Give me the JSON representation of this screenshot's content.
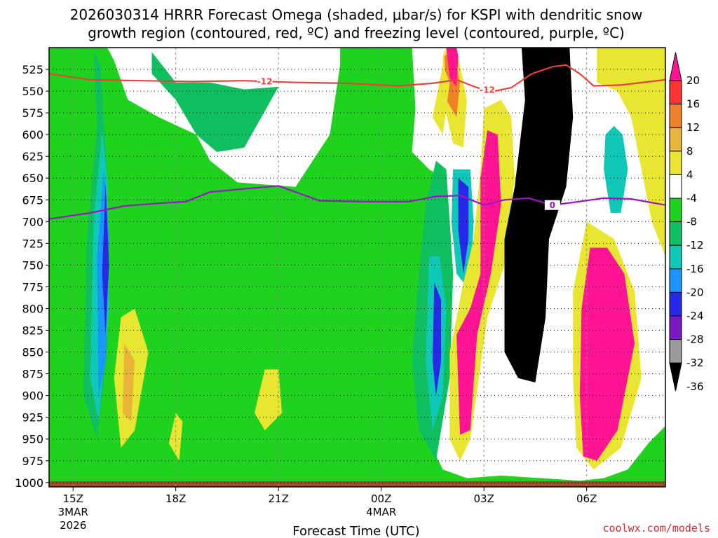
{
  "chart_data": {
    "type": "heatmap",
    "title_line1": "2026030314 HRRR Forecast Omega (shaded, μbar/s) for KSPI with dendritic snow",
    "title_line2": "growth region (contoured, red, ºC) and freezing level (contoured, purple, ºC)",
    "xlabel": "Forecast Time (UTC)",
    "watermark": "coolwx.com/models",
    "x_range_hours": [
      14.3,
      32.3
    ],
    "y_range_mb": [
      500,
      1005
    ],
    "x_ticks": [
      {
        "hour": 15,
        "label": "15Z",
        "sub1": "3MAR",
        "sub2": "2026"
      },
      {
        "hour": 18,
        "label": "18Z",
        "sub1": "",
        "sub2": ""
      },
      {
        "hour": 21,
        "label": "21Z",
        "sub1": "",
        "sub2": ""
      },
      {
        "hour": 24,
        "label": "00Z",
        "sub1": "4MAR",
        "sub2": ""
      },
      {
        "hour": 27,
        "label": "03Z",
        "sub1": "",
        "sub2": ""
      },
      {
        "hour": 30,
        "label": "06Z",
        "sub1": "",
        "sub2": ""
      }
    ],
    "y_ticks": [
      "525",
      "550",
      "575",
      "600",
      "625",
      "650",
      "675",
      "700",
      "725",
      "750",
      "775",
      "800",
      "825",
      "850",
      "875",
      "900",
      "925",
      "950",
      "975",
      "1000"
    ],
    "colorbar": {
      "labels": [
        "20",
        "16",
        "12",
        "8",
        "4",
        "-4",
        "-8",
        "-12",
        "-16",
        "-20",
        "-24",
        "-28",
        "-32",
        "-36"
      ],
      "colors": [
        "#ff1493",
        "#ff3333",
        "#f07f28",
        "#e8b43a",
        "#e9e632",
        "#ffffff",
        "#1ed21e",
        "#10c060",
        "#10c8b8",
        "#1a96ff",
        "#2828e8",
        "#7d18c8",
        "#9b9b9b",
        "#000000"
      ]
    },
    "contours": [
      {
        "name": "dendritic growth -12C",
        "color": "#e8403a",
        "labels": [
          "-12",
          "-12"
        ],
        "label_hours": [
          20.6,
          27.1
        ],
        "points": [
          [
            14.3,
            530
          ],
          [
            15.5,
            537
          ],
          [
            17.0,
            538
          ],
          [
            18.5,
            539
          ],
          [
            20.0,
            538
          ],
          [
            21.5,
            540
          ],
          [
            23.0,
            541
          ],
          [
            24.5,
            544
          ],
          [
            25.5,
            541
          ],
          [
            26.2,
            537
          ],
          [
            26.8,
            546
          ],
          [
            27.3,
            550
          ],
          [
            27.8,
            546
          ],
          [
            28.4,
            530
          ],
          [
            29.0,
            522
          ],
          [
            29.4,
            520
          ],
          [
            29.8,
            530
          ],
          [
            30.2,
            544
          ],
          [
            31.0,
            543
          ],
          [
            32.3,
            537
          ]
        ]
      },
      {
        "name": "freezing level 0C",
        "color": "#9a14c8",
        "labels": [
          "0"
        ],
        "label_hours": [
          29.0
        ],
        "points": [
          [
            14.3,
            697
          ],
          [
            15.5,
            690
          ],
          [
            16.5,
            682
          ],
          [
            17.5,
            679
          ],
          [
            18.3,
            677
          ],
          [
            19.0,
            666
          ],
          [
            19.8,
            663
          ],
          [
            21.0,
            659
          ],
          [
            22.2,
            676
          ],
          [
            23.5,
            677
          ],
          [
            24.8,
            677
          ],
          [
            25.6,
            671
          ],
          [
            26.3,
            670
          ],
          [
            27.0,
            681
          ],
          [
            27.6,
            675
          ],
          [
            28.3,
            673
          ],
          [
            29.0,
            681
          ],
          [
            29.6,
            678
          ],
          [
            30.5,
            673
          ],
          [
            31.3,
            674
          ],
          [
            32.3,
            681
          ]
        ]
      }
    ],
    "shaded_regions": [
      {
        "value": "-8",
        "polygon": [
          [
            14.3,
            500
          ],
          [
            16.0,
            500
          ],
          [
            16.2,
            515
          ],
          [
            16.6,
            560
          ],
          [
            17.5,
            580
          ],
          [
            18.6,
            600
          ],
          [
            19.0,
            630
          ],
          [
            19.8,
            655
          ],
          [
            21.5,
            660
          ],
          [
            22.0,
            630
          ],
          [
            22.5,
            600
          ],
          [
            22.8,
            520
          ],
          [
            22.8,
            500
          ],
          [
            24.9,
            500
          ],
          [
            25.0,
            570
          ],
          [
            24.9,
            620
          ],
          [
            25.4,
            640
          ],
          [
            25.8,
            650
          ],
          [
            26.0,
            700
          ],
          [
            26.1,
            760
          ],
          [
            25.7,
            820
          ],
          [
            25.4,
            880
          ],
          [
            25.3,
            945
          ],
          [
            25.8,
            985
          ],
          [
            26.5,
            995
          ],
          [
            27.5,
            992
          ],
          [
            28.7,
            995
          ],
          [
            29.8,
            998
          ],
          [
            30.5,
            995
          ],
          [
            31.2,
            985
          ],
          [
            31.8,
            955
          ],
          [
            32.3,
            935
          ],
          [
            32.3,
            1000
          ],
          [
            14.3,
            1000
          ]
        ]
      },
      {
        "value": "-12",
        "polygon": [
          [
            15.6,
            505
          ],
          [
            15.7,
            590
          ],
          [
            15.4,
            720
          ],
          [
            15.3,
            900
          ],
          [
            15.7,
            950
          ],
          [
            16.0,
            850
          ],
          [
            16.0,
            650
          ],
          [
            15.8,
            520
          ]
        ]
      },
      {
        "value": "-12",
        "polygon": [
          [
            17.3,
            505
          ],
          [
            18.0,
            540
          ],
          [
            19.0,
            540
          ],
          [
            20.0,
            548
          ],
          [
            21.0,
            545
          ],
          [
            20.5,
            580
          ],
          [
            20.0,
            615
          ],
          [
            19.2,
            620
          ],
          [
            18.6,
            600
          ],
          [
            18.0,
            560
          ],
          [
            17.3,
            530
          ]
        ]
      },
      {
        "value": "-16",
        "polygon": [
          [
            15.85,
            595
          ],
          [
            15.6,
            700
          ],
          [
            15.5,
            880
          ],
          [
            15.75,
            930
          ],
          [
            16.05,
            800
          ],
          [
            16.0,
            650
          ]
        ]
      },
      {
        "value": "-20",
        "polygon": [
          [
            15.9,
            640
          ],
          [
            15.7,
            740
          ],
          [
            15.75,
            900
          ],
          [
            15.95,
            860
          ],
          [
            16.05,
            720
          ]
        ]
      },
      {
        "value": "-24",
        "polygon": [
          [
            15.95,
            655
          ],
          [
            15.85,
            760
          ],
          [
            15.95,
            830
          ],
          [
            16.05,
            750
          ]
        ]
      },
      {
        "value": "-12",
        "polygon": [
          [
            25.3,
            680
          ],
          [
            25.1,
            760
          ],
          [
            24.9,
            860
          ],
          [
            25.1,
            940
          ],
          [
            25.6,
            975
          ],
          [
            26.0,
            880
          ],
          [
            26.1,
            760
          ],
          [
            25.9,
            640
          ],
          [
            25.6,
            630
          ]
        ]
      },
      {
        "value": "-16",
        "polygon": [
          [
            25.4,
            740
          ],
          [
            25.3,
            860
          ],
          [
            25.5,
            940
          ],
          [
            25.8,
            900
          ],
          [
            25.9,
            800
          ],
          [
            25.7,
            740
          ]
        ]
      },
      {
        "value": "-24",
        "polygon": [
          [
            25.55,
            770
          ],
          [
            25.5,
            860
          ],
          [
            25.6,
            900
          ],
          [
            25.75,
            860
          ],
          [
            25.75,
            790
          ]
        ]
      },
      {
        "value": "-16",
        "polygon": [
          [
            26.1,
            640
          ],
          [
            26.05,
            700
          ],
          [
            26.2,
            760
          ],
          [
            26.6,
            780
          ],
          [
            26.7,
            700
          ],
          [
            26.6,
            640
          ]
        ]
      },
      {
        "value": "-24",
        "polygon": [
          [
            26.25,
            650
          ],
          [
            26.25,
            710
          ],
          [
            26.4,
            760
          ],
          [
            26.55,
            720
          ],
          [
            26.55,
            660
          ]
        ]
      },
      {
        "value": "4",
        "polygon": [
          [
            25.8,
            510
          ],
          [
            25.8,
            560
          ],
          [
            26.1,
            610
          ],
          [
            26.4,
            615
          ],
          [
            26.5,
            560
          ],
          [
            26.2,
            500
          ],
          [
            25.9,
            500
          ]
        ]
      },
      {
        "value": "12",
        "polygon": [
          [
            25.85,
            510
          ],
          [
            25.9,
            560
          ],
          [
            26.2,
            580
          ],
          [
            26.3,
            540
          ],
          [
            26.1,
            500
          ]
        ]
      },
      {
        "value": "20",
        "polygon": [
          [
            25.9,
            500
          ],
          [
            26.0,
            535
          ],
          [
            26.2,
            545
          ],
          [
            26.25,
            510
          ],
          [
            26.2,
            500
          ]
        ]
      },
      {
        "value": "4",
        "polygon": [
          [
            27.0,
            570
          ],
          [
            26.9,
            640
          ],
          [
            26.7,
            720
          ],
          [
            26.4,
            770
          ],
          [
            26.0,
            850
          ],
          [
            26.0,
            950
          ],
          [
            26.3,
            975
          ],
          [
            26.6,
            950
          ],
          [
            27.1,
            810
          ],
          [
            27.6,
            750
          ],
          [
            27.9,
            650
          ],
          [
            27.8,
            580
          ],
          [
            27.5,
            560
          ]
        ]
      },
      {
        "value": "20",
        "polygon": [
          [
            27.1,
            595
          ],
          [
            26.9,
            650
          ],
          [
            26.9,
            760
          ],
          [
            26.6,
            800
          ],
          [
            26.2,
            830
          ],
          [
            26.3,
            945
          ],
          [
            26.6,
            940
          ],
          [
            26.8,
            830
          ],
          [
            27.2,
            760
          ],
          [
            27.5,
            680
          ],
          [
            27.4,
            600
          ]
        ]
      },
      {
        "value": "4",
        "polygon": [
          [
            30.0,
            700
          ],
          [
            29.6,
            780
          ],
          [
            29.6,
            880
          ],
          [
            29.7,
            960
          ],
          [
            30.2,
            985
          ],
          [
            31.0,
            960
          ],
          [
            31.6,
            880
          ],
          [
            31.4,
            780
          ],
          [
            30.8,
            720
          ]
        ]
      },
      {
        "value": "20",
        "polygon": [
          [
            30.1,
            730
          ],
          [
            29.85,
            800
          ],
          [
            29.8,
            900
          ],
          [
            29.9,
            970
          ],
          [
            30.3,
            975
          ],
          [
            30.9,
            940
          ],
          [
            31.4,
            840
          ],
          [
            31.1,
            760
          ],
          [
            30.6,
            730
          ]
        ]
      },
      {
        "value": "-36",
        "polygon": [
          [
            28.1,
            500
          ],
          [
            29.5,
            500
          ],
          [
            29.6,
            580
          ],
          [
            29.4,
            660
          ],
          [
            28.9,
            720
          ],
          [
            28.8,
            810
          ],
          [
            28.5,
            885
          ],
          [
            28.0,
            880
          ],
          [
            27.6,
            850
          ],
          [
            27.6,
            720
          ],
          [
            27.9,
            660
          ],
          [
            28.2,
            560
          ]
        ]
      },
      {
        "value": "-16",
        "polygon": [
          [
            30.55,
            600
          ],
          [
            30.5,
            640
          ],
          [
            30.7,
            690
          ],
          [
            31.0,
            690
          ],
          [
            31.2,
            640
          ],
          [
            31.05,
            600
          ],
          [
            30.8,
            590
          ]
        ]
      },
      {
        "value": "4",
        "polygon": [
          [
            30.3,
            500
          ],
          [
            32.3,
            500
          ],
          [
            32.3,
            740
          ],
          [
            31.9,
            700
          ],
          [
            31.6,
            640
          ],
          [
            31.3,
            580
          ],
          [
            30.9,
            550
          ],
          [
            30.3,
            540
          ]
        ]
      },
      {
        "value": "4",
        "polygon": [
          [
            16.4,
            810
          ],
          [
            16.2,
            880
          ],
          [
            16.4,
            960
          ],
          [
            16.8,
            940
          ],
          [
            17.2,
            850
          ],
          [
            16.8,
            800
          ]
        ]
      },
      {
        "value": "8",
        "polygon": [
          [
            16.5,
            840
          ],
          [
            16.45,
            920
          ],
          [
            16.7,
            930
          ],
          [
            16.8,
            860
          ]
        ]
      },
      {
        "value": "4",
        "polygon": [
          [
            20.6,
            870
          ],
          [
            20.3,
            920
          ],
          [
            20.6,
            940
          ],
          [
            21.1,
            920
          ],
          [
            21.0,
            870
          ]
        ]
      },
      {
        "value": "4",
        "polygon": [
          [
            18.0,
            920
          ],
          [
            17.8,
            955
          ],
          [
            18.1,
            975
          ],
          [
            18.2,
            930
          ]
        ]
      },
      {
        "value": "4",
        "polygon": [
          [
            25.8,
            520
          ],
          [
            25.5,
            580
          ],
          [
            25.8,
            600
          ],
          [
            26.0,
            540
          ]
        ]
      }
    ]
  }
}
